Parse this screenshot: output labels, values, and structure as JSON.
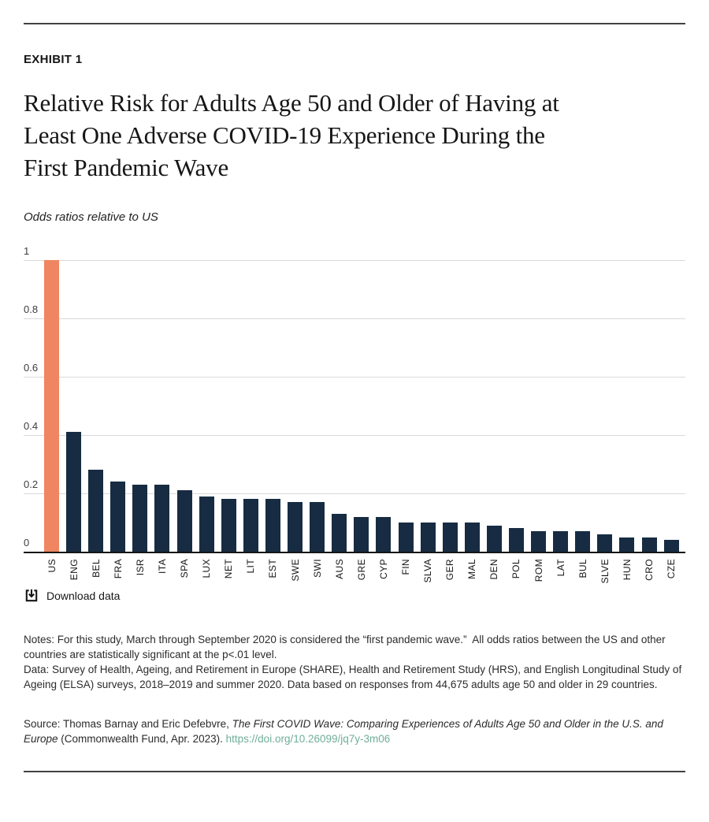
{
  "header": {
    "exhibit_label": "EXHIBIT 1",
    "title_lines": [
      "Relative Risk for Adults Age 50 and Older of Having at",
      "Least One Adverse COVID-19 Experience During the",
      "First Pandemic Wave"
    ],
    "subtitle": "Odds ratios relative to US"
  },
  "chart_data": {
    "type": "bar",
    "title": "Relative Risk for Adults Age 50 and Older of Having at Least One Adverse COVID-19 Experience During the First Pandemic Wave",
    "subtitle": "Odds ratios relative to US",
    "categories": [
      "US",
      "ENG",
      "BEL",
      "FRA",
      "ISR",
      "ITA",
      "SPA",
      "LUX",
      "NET",
      "LIT",
      "EST",
      "SWE",
      "SWI",
      "AUS",
      "GRE",
      "CYP",
      "FIN",
      "SLVA",
      "GER",
      "MAL",
      "DEN",
      "POL",
      "ROM",
      "LAT",
      "BUL",
      "SLVE",
      "HUN",
      "CRO",
      "CZE"
    ],
    "values": [
      1.0,
      0.41,
      0.28,
      0.24,
      0.23,
      0.23,
      0.21,
      0.19,
      0.18,
      0.18,
      0.18,
      0.17,
      0.17,
      0.13,
      0.12,
      0.12,
      0.1,
      0.1,
      0.1,
      0.1,
      0.09,
      0.08,
      0.07,
      0.07,
      0.07,
      0.06,
      0.05,
      0.05,
      0.04
    ],
    "xlabel": "",
    "ylabel": "",
    "ylim": [
      0,
      1
    ],
    "yticks": [
      0,
      0.2,
      0.4,
      0.6,
      0.8,
      1
    ],
    "ytick_labels": [
      "0",
      "0.2",
      "0.4",
      "0.6",
      "0.8",
      "1"
    ],
    "grid": true,
    "legend": false,
    "highlight_category": "US",
    "bar_color": "#172c42",
    "highlight_color": "#ef8561"
  },
  "download": {
    "label": "Download data",
    "icon": "download-icon"
  },
  "notes": {
    "line1": "Notes: For this study, March through September 2020 is considered the “first pandemic wave.”  All odds ratios between the US and other countries are statistically significant at the p<.01 level.",
    "line2": "Data: Survey of Health, Ageing, and Retirement in Europe (SHARE), Health and Retirement Study (HRS), and English Longitudinal Study of Ageing (ELSA) surveys, 2018–2019 and summer 2020. Data based on responses from 44,675 adults age 50 and older in 29 countries."
  },
  "source": {
    "prefix": "Source: Thomas Barnay and Eric Defebvre, ",
    "publication_title": "The First COVID Wave: Comparing Experiences of Adults Age 50 and Older in the U.S. and Europe",
    "suffix": " (Commonwealth Fund, Apr. 2023). ",
    "link_text": "https://doi.org/10.26099/jq7y-3m06",
    "link_color": "#6fae99"
  },
  "colors": {
    "bar": "#172c42",
    "highlight": "#ef8561",
    "gridline": "#d9d9d9",
    "axis": "#161616",
    "rule": "#424242"
  }
}
